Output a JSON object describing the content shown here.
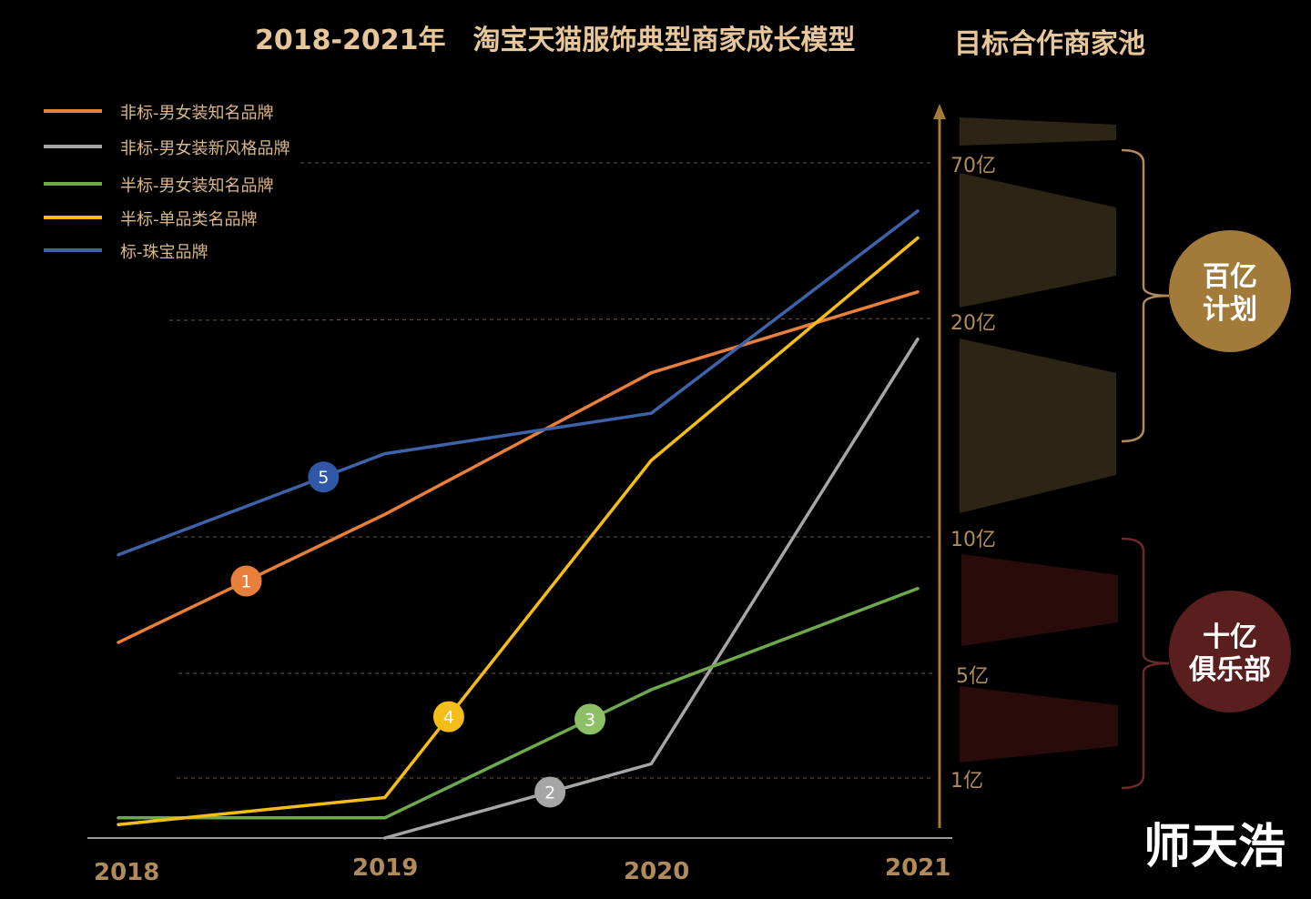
{
  "chart_data": {
    "type": "line",
    "title": "2018-2021年　淘宝天猫服饰典型商家成长模型",
    "side_title": "目标合作商家池",
    "watermark": "师天浩",
    "x": [
      "2018",
      "2019",
      "2020",
      "2021"
    ],
    "y_ticks": [
      "70亿",
      "20亿",
      "10亿",
      "5亿",
      "1亿"
    ],
    "legend_position": "top-left",
    "series": [
      {
        "name": "非标-男女装知名品牌",
        "color": "#e8803c",
        "marker": "1",
        "marker_color": "#e8803c",
        "values": [
          [
            2018,
            0.29
          ],
          [
            2019,
            0.48
          ],
          [
            2020,
            0.69
          ],
          [
            2021,
            0.81
          ]
        ],
        "marker_at": 2018.48
      },
      {
        "name": "非标-男女装新风格品牌",
        "color": "#a6a6a6",
        "marker": "2",
        "marker_color": "#a6a6a6",
        "values": [
          [
            2019,
            0.0
          ],
          [
            2020,
            0.11
          ],
          [
            2021,
            0.74
          ]
        ],
        "marker_at": 2019.62
      },
      {
        "name": "半标-男女装知名品牌",
        "color": "#6fa94e",
        "marker": "3",
        "marker_color": "#8dbf66",
        "values": [
          [
            2018,
            0.03
          ],
          [
            2019,
            0.03
          ],
          [
            2020,
            0.22
          ],
          [
            2021,
            0.37
          ]
        ],
        "marker_at": 2019.77
      },
      {
        "name": "半标-单品类名品牌",
        "color": "#f5bd17",
        "marker": "4",
        "marker_color": "#f5bd17",
        "values": [
          [
            2018,
            0.02
          ],
          [
            2019,
            0.06
          ],
          [
            2020,
            0.56
          ],
          [
            2021,
            0.89
          ]
        ],
        "marker_at": 2019.24
      },
      {
        "name": "标-珠宝品牌",
        "color": "#3f63aa",
        "marker": "5",
        "marker_color": "#2f58a8",
        "values": [
          [
            2018,
            0.42
          ],
          [
            2019,
            0.57
          ],
          [
            2020,
            0.63
          ],
          [
            2021,
            0.93
          ]
        ],
        "marker_at": 2018.77
      }
    ],
    "tiers": [
      {
        "label": "百亿\n计划",
        "color": "#a27a3a",
        "label_lines": [
          "百亿",
          "计划"
        ]
      },
      {
        "label": "十亿\n俱乐部",
        "color": "#5a1e1e",
        "label_lines": [
          "十亿",
          "俱乐部"
        ]
      }
    ]
  }
}
